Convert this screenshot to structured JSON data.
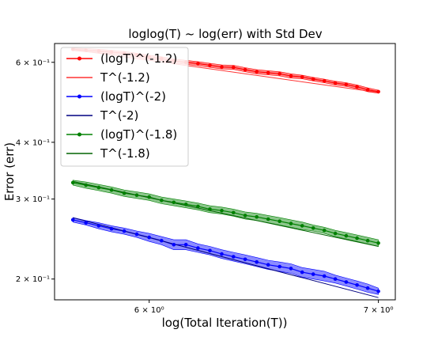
{
  "chart_data": {
    "type": "line",
    "title": "loglog(T) ~ log(err) with Std Dev",
    "xlabel": "log(Total Iteration(T))",
    "ylabel": "Error (err)",
    "xscale": "log",
    "yscale": "log",
    "xlim": [
      5.63,
      7.08
    ],
    "ylim": [
      0.18,
      0.66
    ],
    "grid": false,
    "legend_position": "top-left",
    "xticks": [
      {
        "value": 6,
        "label": "6 × 10⁰"
      },
      {
        "value": 7,
        "label": "7 × 10⁰"
      }
    ],
    "yticks": [
      {
        "value": 0.2,
        "label": "2 × 10⁻¹"
      },
      {
        "value": 0.3,
        "label": "3 × 10⁻¹"
      },
      {
        "value": 0.4,
        "label": "4 × 10⁻¹"
      },
      {
        "value": 0.6,
        "label": "6 × 10⁻¹"
      }
    ],
    "series": [
      {
        "name": "(logT)^(-1.2)",
        "color": "#ff0000",
        "kind": "measured",
        "points": [
          [
            5.7,
            0.641
          ],
          [
            5.75,
            0.638
          ],
          [
            5.8,
            0.635
          ],
          [
            5.85,
            0.632
          ],
          [
            5.9,
            0.628
          ],
          [
            5.95,
            0.622
          ],
          [
            6.0,
            0.616
          ],
          [
            6.05,
            0.611
          ],
          [
            6.1,
            0.604
          ],
          [
            6.15,
            0.6
          ],
          [
            6.2,
            0.596
          ],
          [
            6.25,
            0.591
          ],
          [
            6.3,
            0.586
          ],
          [
            6.35,
            0.585
          ],
          [
            6.4,
            0.578
          ],
          [
            6.45,
            0.572
          ],
          [
            6.5,
            0.569
          ],
          [
            6.55,
            0.566
          ],
          [
            6.6,
            0.56
          ],
          [
            6.65,
            0.557
          ],
          [
            6.7,
            0.551
          ],
          [
            6.75,
            0.546
          ],
          [
            6.8,
            0.54
          ],
          [
            6.85,
            0.536
          ],
          [
            6.9,
            0.53
          ],
          [
            6.95,
            0.522
          ],
          [
            7.0,
            0.517
          ]
        ],
        "std": [
          0.004,
          0.005,
          0.006,
          0.006,
          0.006,
          0.006,
          0.006,
          0.006,
          0.006,
          0.006,
          0.006,
          0.006,
          0.006,
          0.006,
          0.006,
          0.006,
          0.006,
          0.006,
          0.006,
          0.005,
          0.005,
          0.005,
          0.005,
          0.005,
          0.005,
          0.005,
          0.004
        ]
      },
      {
        "name": "T^(-1.2)",
        "color": "#ff3333",
        "kind": "reference",
        "points": [
          [
            5.7,
            0.64
          ],
          [
            7.0,
            0.515
          ]
        ]
      },
      {
        "name": "(logT)^(-2)",
        "color": "#0000ff",
        "kind": "measured",
        "points": [
          [
            5.7,
            0.27
          ],
          [
            5.75,
            0.266
          ],
          [
            5.8,
            0.262
          ],
          [
            5.85,
            0.258
          ],
          [
            5.9,
            0.255
          ],
          [
            5.95,
            0.251
          ],
          [
            6.0,
            0.247
          ],
          [
            6.05,
            0.243
          ],
          [
            6.1,
            0.238
          ],
          [
            6.15,
            0.238
          ],
          [
            6.2,
            0.234
          ],
          [
            6.25,
            0.231
          ],
          [
            6.3,
            0.227
          ],
          [
            6.35,
            0.224
          ],
          [
            6.4,
            0.221
          ],
          [
            6.45,
            0.218
          ],
          [
            6.5,
            0.215
          ],
          [
            6.55,
            0.213
          ],
          [
            6.6,
            0.211
          ],
          [
            6.65,
            0.207
          ],
          [
            6.7,
            0.205
          ],
          [
            6.75,
            0.203
          ],
          [
            6.8,
            0.2
          ],
          [
            6.85,
            0.197
          ],
          [
            6.9,
            0.194
          ],
          [
            6.95,
            0.191
          ],
          [
            7.0,
            0.188
          ]
        ],
        "std": [
          0.003,
          0.003,
          0.004,
          0.004,
          0.004,
          0.004,
          0.005,
          0.005,
          0.006,
          0.006,
          0.005,
          0.005,
          0.005,
          0.005,
          0.005,
          0.005,
          0.005,
          0.005,
          0.005,
          0.005,
          0.005,
          0.005,
          0.004,
          0.004,
          0.004,
          0.004,
          0.003
        ]
      },
      {
        "name": "T^(-2)",
        "color": "#000080",
        "kind": "reference",
        "points": [
          [
            5.7,
            0.273
          ],
          [
            7.0,
            0.182
          ]
        ]
      },
      {
        "name": "(logT)^(-1.8)",
        "color": "#008000",
        "kind": "measured",
        "points": [
          [
            5.7,
            0.326
          ],
          [
            5.75,
            0.322
          ],
          [
            5.8,
            0.318
          ],
          [
            5.85,
            0.314
          ],
          [
            5.9,
            0.309
          ],
          [
            5.95,
            0.306
          ],
          [
            6.0,
            0.303
          ],
          [
            6.05,
            0.298
          ],
          [
            6.1,
            0.295
          ],
          [
            6.15,
            0.292
          ],
          [
            6.2,
            0.289
          ],
          [
            6.25,
            0.285
          ],
          [
            6.3,
            0.283
          ],
          [
            6.35,
            0.28
          ],
          [
            6.4,
            0.276
          ],
          [
            6.45,
            0.274
          ],
          [
            6.5,
            0.271
          ],
          [
            6.55,
            0.268
          ],
          [
            6.6,
            0.265
          ],
          [
            6.65,
            0.262
          ],
          [
            6.7,
            0.259
          ],
          [
            6.75,
            0.256
          ],
          [
            6.8,
            0.252
          ],
          [
            6.85,
            0.249
          ],
          [
            6.9,
            0.246
          ],
          [
            6.95,
            0.243
          ],
          [
            7.0,
            0.24
          ]
        ],
        "std": [
          0.004,
          0.005,
          0.005,
          0.005,
          0.005,
          0.005,
          0.005,
          0.005,
          0.005,
          0.005,
          0.005,
          0.005,
          0.005,
          0.005,
          0.005,
          0.005,
          0.005,
          0.005,
          0.005,
          0.005,
          0.004,
          0.004,
          0.004,
          0.004,
          0.004,
          0.004,
          0.004
        ]
      },
      {
        "name": "T^(-1.8)",
        "color": "#006400",
        "kind": "reference",
        "points": [
          [
            5.7,
            0.328
          ],
          [
            7.0,
            0.236
          ]
        ]
      }
    ]
  }
}
